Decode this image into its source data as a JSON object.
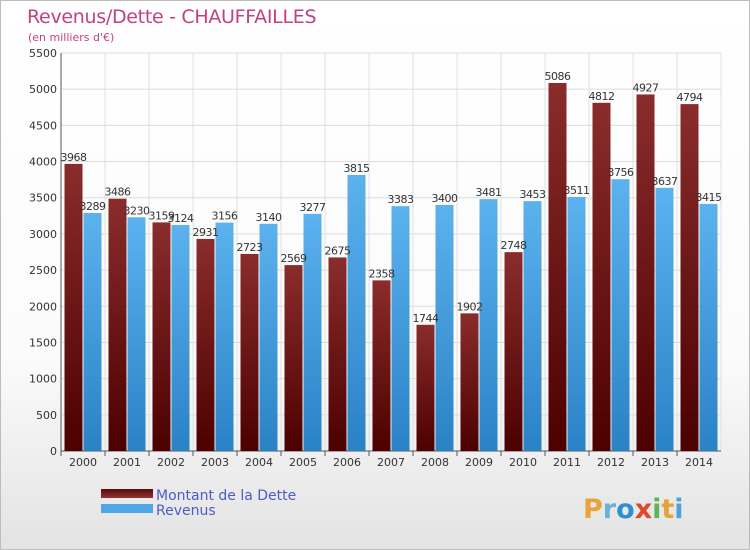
{
  "header": {
    "title": "Revenus/Dette - CHAUFFAILLES",
    "subtitle": "(en milliers d'€)"
  },
  "logo": {
    "text": "Proxiti"
  },
  "colors": {
    "dette": "#7a2020",
    "revenus": "#4fa6e6"
  },
  "chart_data": {
    "type": "bar",
    "title": "Revenus/Dette - CHAUFFAILLES",
    "subtitle": "(en milliers d'€)",
    "categories": [
      "2000",
      "2001",
      "2002",
      "2003",
      "2004",
      "2005",
      "2006",
      "2007",
      "2008",
      "2009",
      "2010",
      "2011",
      "2012",
      "2013",
      "2014"
    ],
    "series": [
      {
        "name": "Montant de la Dette",
        "values": [
          3968,
          3486,
          3159,
          2931,
          2723,
          2569,
          2675,
          2358,
          1744,
          1902,
          2748,
          5086,
          4812,
          4927,
          4794
        ]
      },
      {
        "name": "Revenus",
        "values": [
          3289,
          3230,
          3124,
          3156,
          3140,
          3277,
          3815,
          3383,
          3400,
          3481,
          3453,
          3511,
          3756,
          3637,
          3415
        ]
      }
    ],
    "ylim": [
      0,
      5500
    ],
    "yticks": [
      0,
      500,
      1000,
      1500,
      2000,
      2500,
      3000,
      3500,
      4000,
      4500,
      5000,
      5500
    ],
    "grid": true,
    "legend": "bottom-left"
  }
}
